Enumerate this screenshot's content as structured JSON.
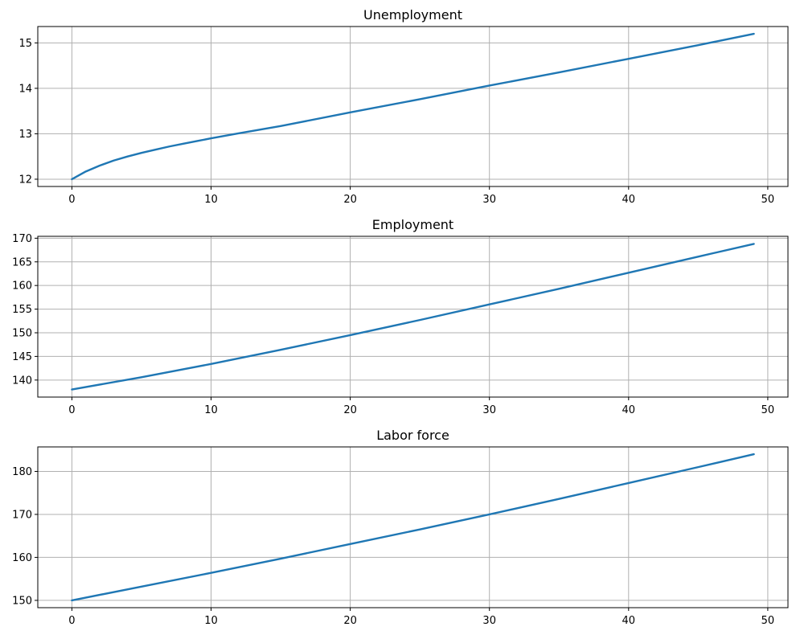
{
  "chart_data": [
    {
      "type": "line",
      "title": "Unemployment",
      "xlabel": "",
      "ylabel": "",
      "xlim": [
        -2.45,
        51.45
      ],
      "ylim": [
        11.84,
        15.36
      ],
      "xticks": [
        0,
        10,
        20,
        30,
        40,
        50
      ],
      "yticks": [
        12,
        13,
        14,
        15
      ],
      "grid": true,
      "color": "#1f77b4",
      "series": [
        {
          "x": [
            0,
            1,
            2,
            3,
            4,
            5,
            6,
            7,
            8,
            9,
            10,
            12,
            15,
            20,
            25,
            30,
            35,
            40,
            45,
            49
          ],
          "values": [
            12.0,
            12.17,
            12.3,
            12.41,
            12.5,
            12.58,
            12.65,
            12.72,
            12.78,
            12.84,
            12.9,
            13.01,
            13.17,
            13.47,
            13.76,
            14.06,
            14.35,
            14.65,
            14.95,
            15.2
          ]
        }
      ]
    },
    {
      "type": "line",
      "title": "Employment",
      "xlabel": "",
      "ylabel": "",
      "xlim": [
        -2.45,
        51.45
      ],
      "ylim": [
        136.4,
        170.4
      ],
      "xticks": [
        0,
        10,
        20,
        30,
        40,
        50
      ],
      "yticks": [
        140,
        145,
        150,
        155,
        160,
        165,
        170
      ],
      "grid": true,
      "color": "#1f77b4",
      "series": [
        {
          "x": [
            0,
            5,
            10,
            15,
            20,
            25,
            30,
            35,
            40,
            45,
            49
          ],
          "values": [
            138.0,
            140.6,
            143.4,
            146.4,
            149.5,
            152.7,
            156.0,
            159.3,
            162.7,
            166.1,
            168.8
          ]
        }
      ]
    },
    {
      "type": "line",
      "title": "Labor force",
      "xlabel": "",
      "ylabel": "",
      "xlim": [
        -2.45,
        51.45
      ],
      "ylim": [
        148.3,
        185.7
      ],
      "xticks": [
        0,
        10,
        20,
        30,
        40,
        50
      ],
      "yticks": [
        150,
        160,
        170,
        180
      ],
      "grid": true,
      "color": "#1f77b4",
      "series": [
        {
          "x": [
            0,
            5,
            10,
            15,
            20,
            25,
            30,
            35,
            40,
            45,
            49
          ],
          "values": [
            150.0,
            153.2,
            156.4,
            159.7,
            163.1,
            166.5,
            170.0,
            173.6,
            177.3,
            181.0,
            184.0
          ]
        }
      ]
    }
  ]
}
